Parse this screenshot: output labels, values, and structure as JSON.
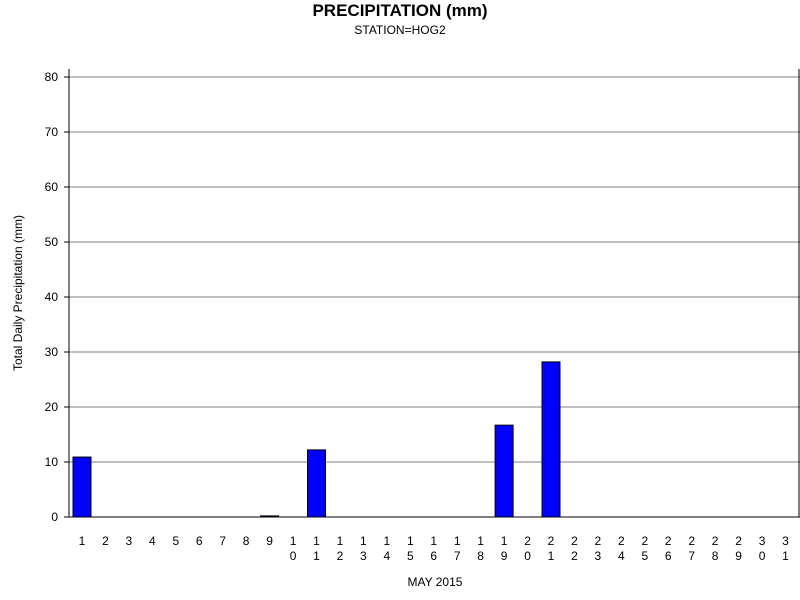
{
  "chart_data": {
    "type": "bar",
    "title": "PRECIPITATION (mm)",
    "subtitle": "STATION=HOG2",
    "xlabel": "MAY 2015",
    "ylabel": "Total Daily Precipitation (mm)",
    "ylim": [
      0,
      80
    ],
    "yticks": [
      0,
      10,
      20,
      30,
      40,
      50,
      60,
      70,
      80
    ],
    "grid": true,
    "bar_color": "#0000ff",
    "categories": [
      "1",
      "2",
      "3",
      "4",
      "5",
      "6",
      "7",
      "8",
      "9",
      "10",
      "11",
      "12",
      "13",
      "14",
      "15",
      "16",
      "17",
      "18",
      "19",
      "20",
      "21",
      "22",
      "23",
      "24",
      "25",
      "26",
      "27",
      "28",
      "29",
      "30",
      "31"
    ],
    "values": [
      10.9,
      0,
      0,
      0,
      0,
      0,
      0,
      0,
      0.2,
      0,
      12.2,
      0,
      0,
      0,
      0,
      0,
      0,
      0,
      16.7,
      0,
      28.2,
      0,
      0,
      0,
      0,
      0,
      0,
      0,
      0,
      0,
      0
    ]
  }
}
